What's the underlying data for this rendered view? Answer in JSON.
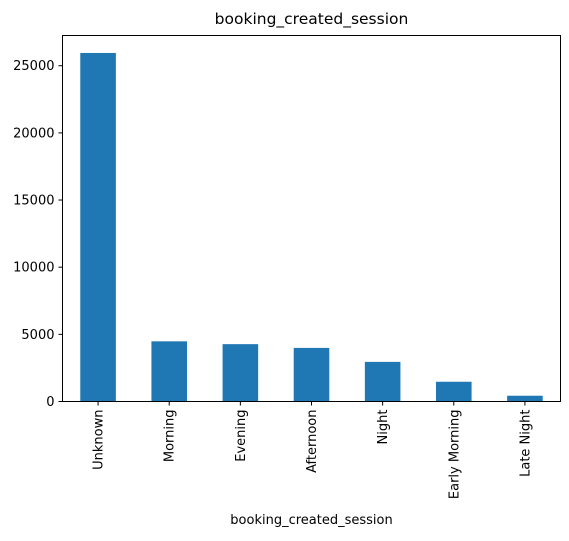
{
  "chart_data": {
    "type": "bar",
    "title": "booking_created_session",
    "xlabel": "booking_created_session",
    "ylabel": "",
    "categories": [
      "Unknown",
      "Morning",
      "Evening",
      "Afternoon",
      "Night",
      "Early Morning",
      "Late Night"
    ],
    "values": [
      25950,
      4480,
      4270,
      3990,
      2950,
      1470,
      430
    ],
    "ylim": [
      0,
      27250
    ],
    "yticks": [
      0,
      5000,
      10000,
      15000,
      20000,
      25000
    ],
    "ytick_labels": [
      "0",
      "5000",
      "10000",
      "15000",
      "20000",
      "25000"
    ],
    "bar_color": "#1f77b4",
    "grid": false,
    "legend": "none"
  }
}
